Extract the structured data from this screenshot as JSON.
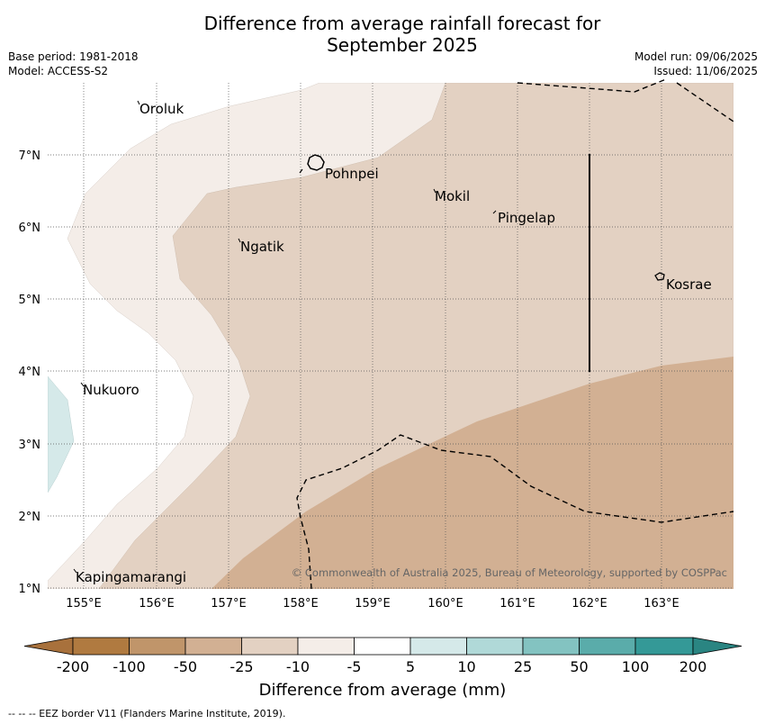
{
  "title_line1": "Difference from average rainfall forecast for",
  "title_line2": "September 2025",
  "base_period": "Base period: 1981-2018",
  "model": "Model: ACCESS-S2",
  "model_run": "Model run: 09/06/2025",
  "issued": "Issued: 11/06/2025",
  "lon_labels": [
    "155°E",
    "156°E",
    "157°E",
    "158°E",
    "159°E",
    "160°E",
    "161°E",
    "162°E",
    "163°E"
  ],
  "lat_labels": [
    "7°N",
    "6°N",
    "5°N",
    "4°N",
    "3°N",
    "2°N",
    "1°N"
  ],
  "places": [
    "Oroluk",
    "Pohnpei",
    "Mokil",
    "Pingelap",
    "Ngatik",
    "Kosrae",
    "Nukuoro",
    "Kapingamarangi"
  ],
  "copyright": "© Commonwealth of Australia 2025, Bureau of Meteorology, supported by COSPPac",
  "colorbar": {
    "tick_labels": [
      "-200",
      "-100",
      "-50",
      "-25",
      "-10",
      "-5",
      "5",
      "10",
      "25",
      "50",
      "100",
      "200"
    ],
    "colors": [
      "#a8713c",
      "#b07a40",
      "#c0956a",
      "#d2b093",
      "#e3d1c2",
      "#f4ede8",
      "#ffffff",
      "#d5e9e9",
      "#b0d9d8",
      "#83c3c1",
      "#5aacaa",
      "#349997",
      "#2a8582"
    ],
    "label": "Difference from average (mm)"
  },
  "footer": "--  --  -- EEZ border V11 (Flanders Marine Institute, 2019)."
}
